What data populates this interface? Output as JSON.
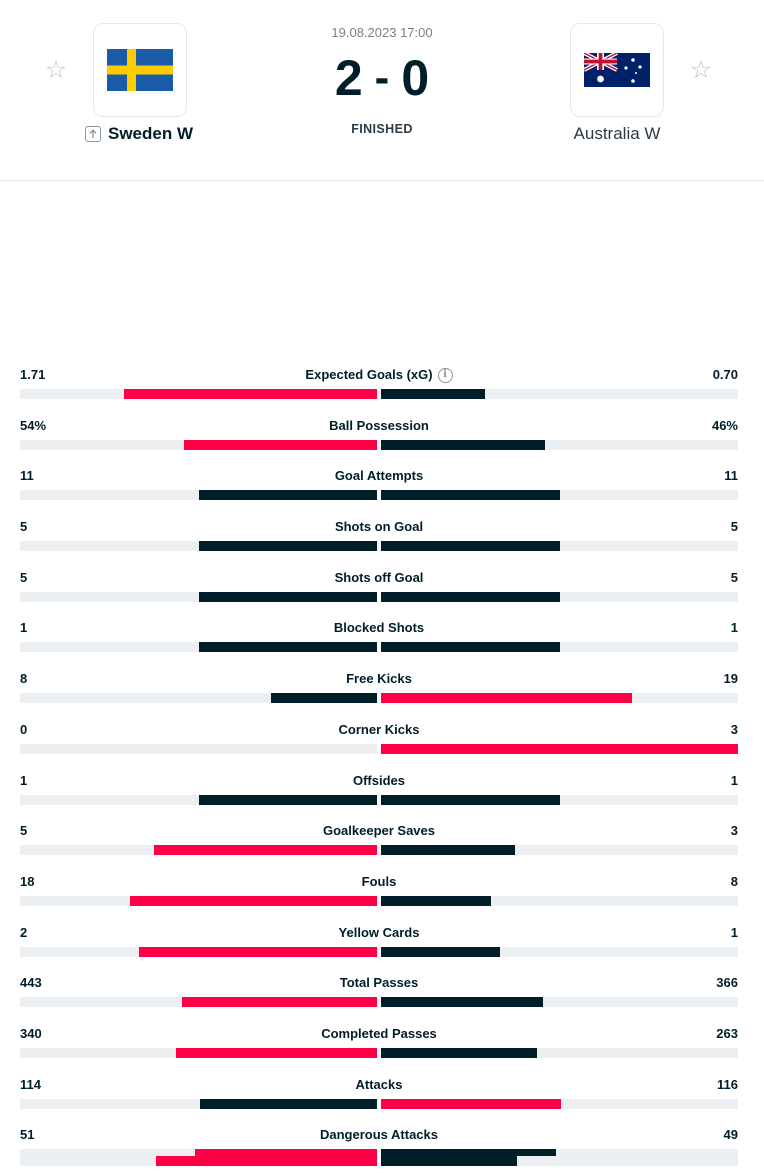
{
  "match": {
    "datetime": "19.08.2023 17:00",
    "home_score": "2",
    "away_score": "0",
    "separator": "-",
    "status": "FINISHED",
    "home_team": "Sweden W",
    "away_team": "Australia W",
    "star_glyph": "☆",
    "home_flag": "sweden-flag",
    "away_flag": "australia-flag"
  },
  "colors": {
    "winner": "#ff0046",
    "loser": "#001e28",
    "track": "#eceff1"
  },
  "stats": [
    {
      "label": "Expected Goals (xG)",
      "home": "1.71",
      "away": "0.70",
      "info": true
    },
    {
      "label": "Ball Possession",
      "home": "54%",
      "away": "46%"
    },
    {
      "label": "Goal Attempts",
      "home": "11",
      "away": "11"
    },
    {
      "label": "Shots on Goal",
      "home": "5",
      "away": "5"
    },
    {
      "label": "Shots off Goal",
      "home": "5",
      "away": "5"
    },
    {
      "label": "Blocked Shots",
      "home": "1",
      "away": "1"
    },
    {
      "label": "Free Kicks",
      "home": "8",
      "away": "19"
    },
    {
      "label": "Corner Kicks",
      "home": "0",
      "away": "3"
    },
    {
      "label": "Offsides",
      "home": "1",
      "away": "1"
    },
    {
      "label": "Goalkeeper Saves",
      "home": "5",
      "away": "3"
    },
    {
      "label": "Fouls",
      "home": "18",
      "away": "8"
    },
    {
      "label": "Yellow Cards",
      "home": "2",
      "away": "1"
    },
    {
      "label": "Total Passes",
      "home": "443",
      "away": "366"
    },
    {
      "label": "Completed Passes",
      "home": "340",
      "away": "263"
    },
    {
      "label": "Attacks",
      "home": "114",
      "away": "116"
    },
    {
      "label": "Dangerous Attacks",
      "home": "51",
      "away": "49"
    }
  ],
  "partial_row": {
    "home_share": 0.62,
    "away_share": 0.38
  }
}
